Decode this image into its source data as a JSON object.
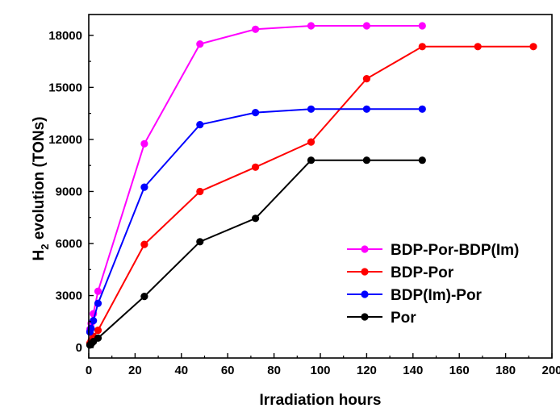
{
  "chart_data": {
    "type": "line",
    "xlabel": "Irradiation hours",
    "ylabel_main": "H",
    "ylabel_sub": "2",
    "ylabel_rest": " evolution (TONs)",
    "xlim": [
      0,
      200
    ],
    "ylim": [
      -600,
      19200
    ],
    "xticks": [
      0,
      20,
      40,
      60,
      80,
      100,
      120,
      140,
      160,
      180,
      200
    ],
    "yticks": [
      0,
      3000,
      6000,
      9000,
      12000,
      15000,
      18000
    ],
    "grid": false,
    "legend_position": "bottom-right",
    "series": [
      {
        "name": "BDP-Por-BDP(Im)",
        "color": "#ff00ff",
        "x": [
          0.5,
          1,
          2,
          4,
          24,
          48,
          72,
          96,
          120,
          144
        ],
        "y": [
          1050,
          1400,
          1950,
          3250,
          11750,
          17500,
          18350,
          18550,
          18550,
          18550
        ]
      },
      {
        "name": "BDP-Por",
        "color": "#ff0000",
        "x": [
          0.5,
          1,
          2,
          4,
          24,
          48,
          72,
          96,
          120,
          144,
          168,
          192
        ],
        "y": [
          250,
          400,
          650,
          1000,
          5950,
          9000,
          10400,
          11850,
          15500,
          17350,
          17350,
          17350
        ]
      },
      {
        "name": "BDP(Im)-Por",
        "color": "#0000ff",
        "x": [
          0.5,
          1,
          2,
          4,
          24,
          48,
          72,
          96,
          120,
          144
        ],
        "y": [
          900,
          1100,
          1550,
          2550,
          9250,
          12850,
          13550,
          13750,
          13750,
          13750
        ]
      },
      {
        "name": "Por",
        "color": "#000000",
        "x": [
          0.5,
          1,
          2,
          4,
          24,
          48,
          72,
          96,
          120,
          144
        ],
        "y": [
          150,
          200,
          350,
          550,
          2950,
          6100,
          7450,
          10800,
          10800,
          10800
        ]
      }
    ]
  }
}
